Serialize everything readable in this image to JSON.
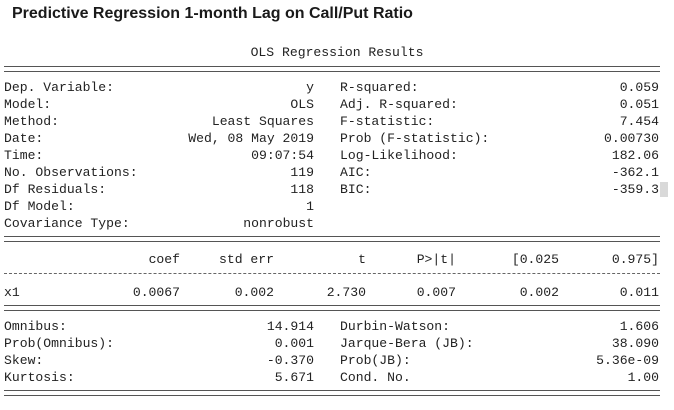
{
  "title": "Predictive Regression 1-month Lag on Call/Put Ratio",
  "heading": "OLS Regression Results",
  "summary": {
    "left": [
      {
        "label": "Dep. Variable:",
        "value": "y"
      },
      {
        "label": "Model:",
        "value": "OLS"
      },
      {
        "label": "Method:",
        "value": "Least Squares"
      },
      {
        "label": "Date:",
        "value": "Wed, 08 May 2019"
      },
      {
        "label": "Time:",
        "value": "09:07:54"
      },
      {
        "label": "No. Observations:",
        "value": "119"
      },
      {
        "label": "Df Residuals:",
        "value": "118"
      },
      {
        "label": "Df Model:",
        "value": "1"
      },
      {
        "label": "Covariance Type:",
        "value": "nonrobust"
      }
    ],
    "right": [
      {
        "label": "R-squared:",
        "value": "0.059"
      },
      {
        "label": "Adj. R-squared:",
        "value": "0.051"
      },
      {
        "label": "F-statistic:",
        "value": "7.454"
      },
      {
        "label": "Prob (F-statistic):",
        "value": "0.00730"
      },
      {
        "label": "Log-Likelihood:",
        "value": "182.06"
      },
      {
        "label": "AIC:",
        "value": "-362.1"
      },
      {
        "label": "BIC:",
        "value": "-359.3"
      }
    ]
  },
  "coef_table": {
    "headers": [
      "coef",
      "std err",
      "t",
      "P>|t|",
      "[0.025",
      "0.975]"
    ],
    "rows": [
      {
        "name": "x1",
        "values": [
          "0.0067",
          "0.002",
          "2.730",
          "0.007",
          "0.002",
          "0.011"
        ]
      }
    ]
  },
  "diagnostics": {
    "left": [
      {
        "label": "Omnibus:",
        "value": "14.914"
      },
      {
        "label": "Prob(Omnibus):",
        "value": "0.001"
      },
      {
        "label": "Skew:",
        "value": "-0.370"
      },
      {
        "label": "Kurtosis:",
        "value": "5.671"
      }
    ],
    "right": [
      {
        "label": "Durbin-Watson:",
        "value": "1.606"
      },
      {
        "label": "Jarque-Bera (JB):",
        "value": "38.090"
      },
      {
        "label": "Prob(JB):",
        "value": "5.36e-09"
      },
      {
        "label": "Cond. No.",
        "value": "1.00"
      }
    ]
  }
}
